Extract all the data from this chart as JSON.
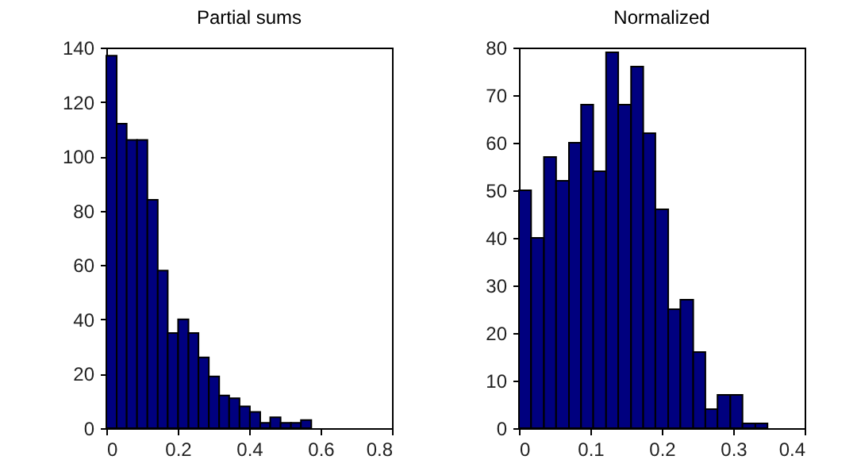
{
  "chart_data": [
    {
      "type": "histogram",
      "title": "Partial sums",
      "color": "#00007f",
      "bins": [
        0,
        0.029,
        0.057,
        0.086,
        0.115,
        0.144,
        0.172,
        0.201,
        0.23,
        0.258,
        0.287,
        0.316,
        0.344,
        0.373,
        0.402,
        0.431,
        0.459,
        0.488,
        0.517,
        0.545,
        0.574
      ],
      "values": [
        137,
        112,
        106,
        106,
        84,
        58,
        35,
        40,
        35,
        26,
        19,
        12,
        11,
        8,
        6,
        2,
        4,
        2,
        2,
        3
      ],
      "xlim": [
        0,
        0.8
      ],
      "xticks": [
        0,
        0.2,
        0.4,
        0.6,
        0.8
      ],
      "ylim": [
        0,
        140
      ],
      "yticks": [
        0,
        20,
        40,
        60,
        80,
        100,
        120,
        140
      ],
      "grid": false
    },
    {
      "type": "histogram",
      "title": "Normalized",
      "color": "#00007f",
      "bins": [
        0,
        0.017,
        0.035,
        0.052,
        0.07,
        0.087,
        0.104,
        0.122,
        0.139,
        0.157,
        0.174,
        0.191,
        0.209,
        0.226,
        0.244,
        0.261,
        0.278,
        0.296,
        0.313,
        0.331,
        0.348
      ],
      "values": [
        50,
        40,
        57,
        52,
        60,
        68,
        54,
        79,
        68,
        76,
        62,
        46,
        25,
        27,
        16,
        4,
        7,
        7,
        1,
        1
      ],
      "xlim": [
        0,
        0.4
      ],
      "xticks": [
        0,
        0.1,
        0.2,
        0.3,
        0.4
      ],
      "ylim": [
        0,
        80
      ],
      "yticks": [
        0,
        10,
        20,
        30,
        40,
        50,
        60,
        70,
        80
      ],
      "grid": false
    }
  ]
}
